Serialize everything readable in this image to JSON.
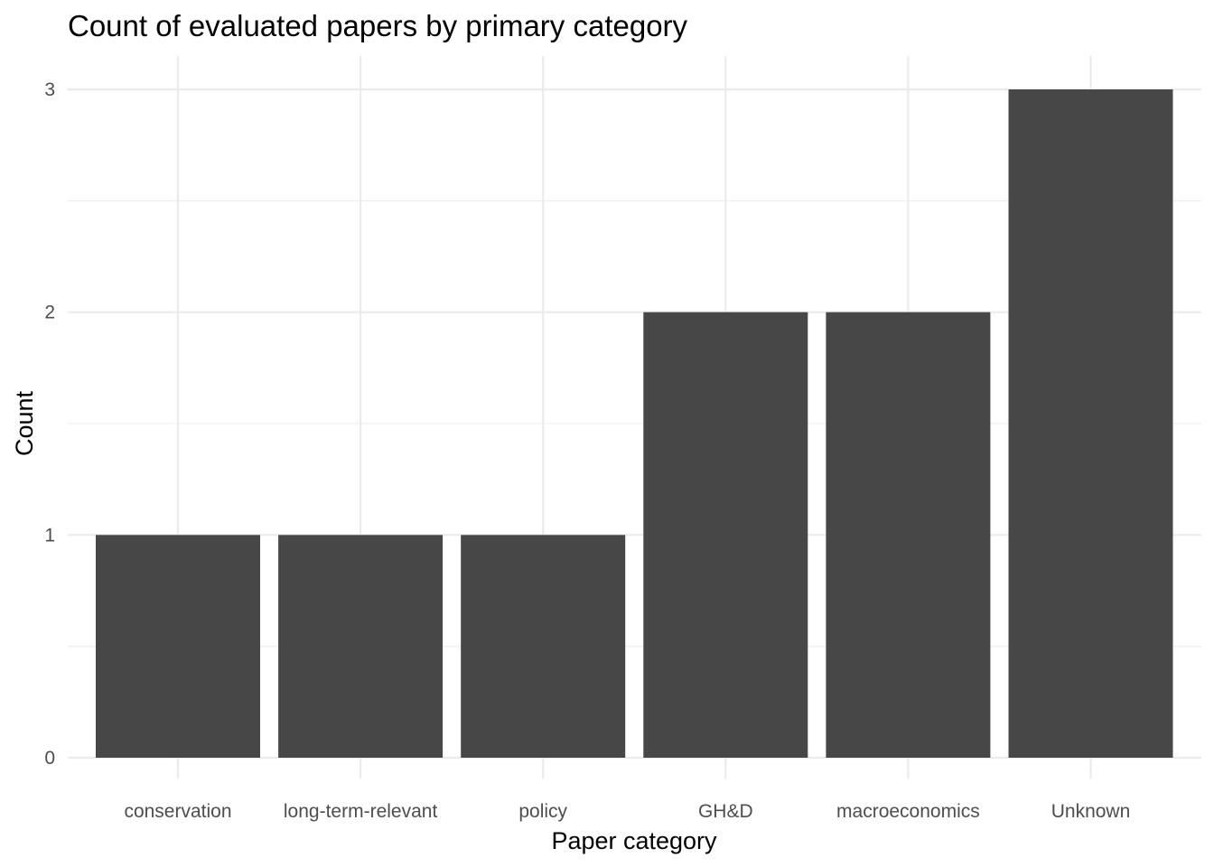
{
  "chart_data": {
    "type": "bar",
    "title": "Count of evaluated papers by primary category",
    "xlabel": "Paper category",
    "ylabel": "Count",
    "categories": [
      "conservation",
      "long-term-relevant",
      "policy",
      "GH&D",
      "macroeconomics",
      "Unknown"
    ],
    "values": [
      1,
      1,
      1,
      2,
      2,
      3
    ],
    "ylim": [
      0,
      3
    ],
    "yticks": [
      "0",
      "1",
      "2",
      "3"
    ],
    "grid": true,
    "bar_color": "#474747",
    "background": "#ffffff"
  }
}
